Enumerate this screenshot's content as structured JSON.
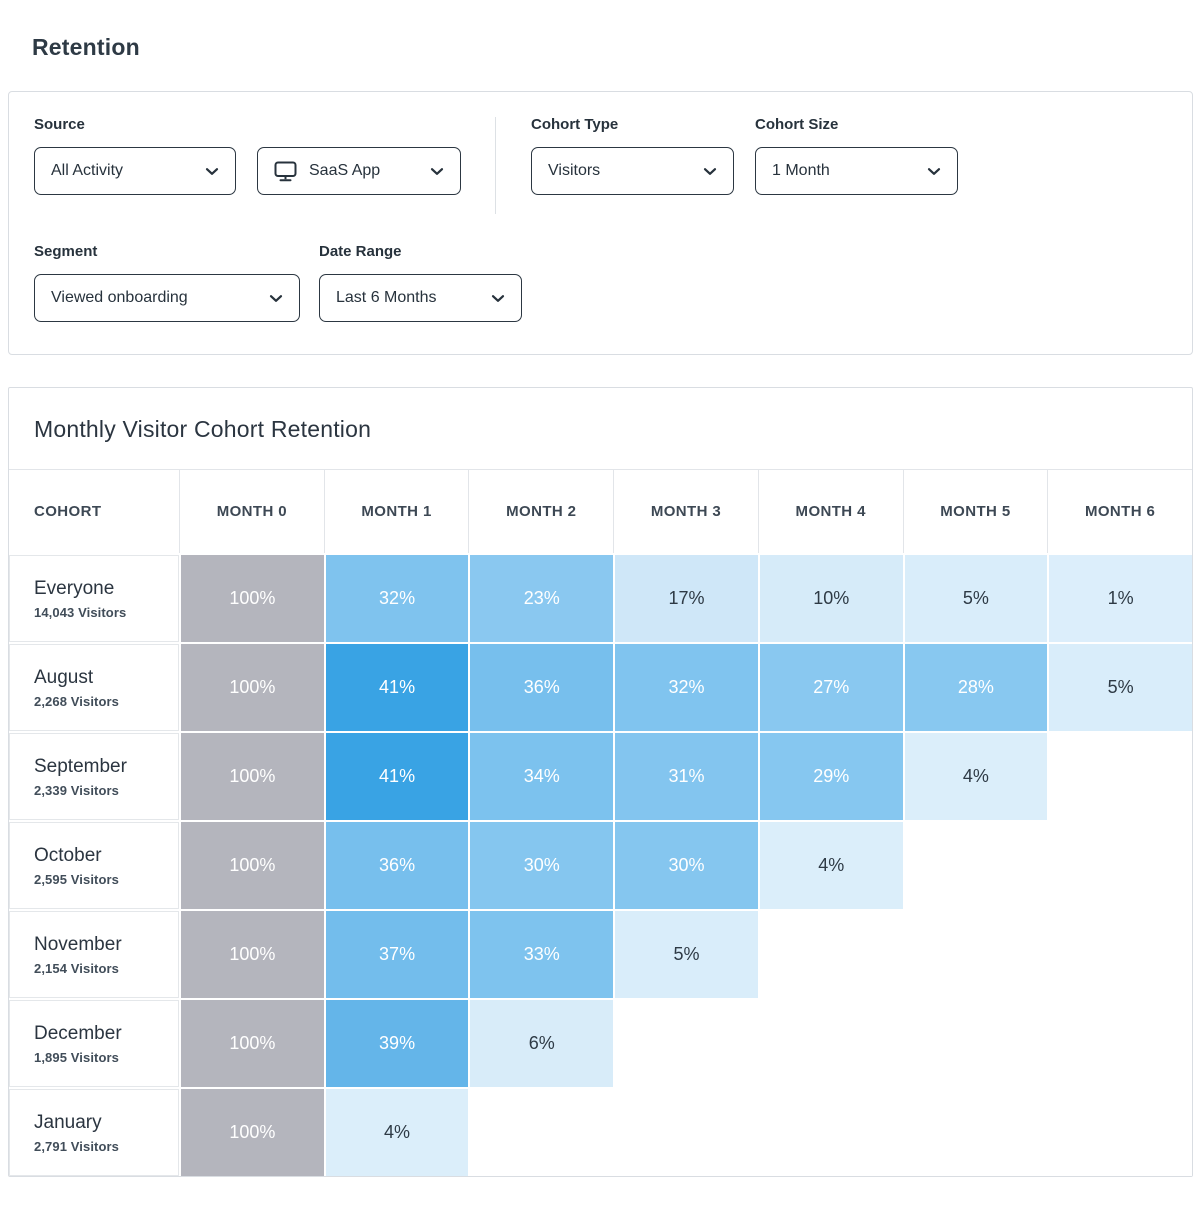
{
  "page_title": "Retention",
  "filters": {
    "source": {
      "label": "Source",
      "activity": {
        "value": "All Activity"
      },
      "app": {
        "value": "SaaS App",
        "icon": "monitor-icon"
      }
    },
    "cohort_type": {
      "label": "Cohort Type",
      "value": "Visitors"
    },
    "cohort_size": {
      "label": "Cohort Size",
      "value": "1 Month"
    },
    "segment": {
      "label": "Segment",
      "value": "Viewed onboarding"
    },
    "date_range": {
      "label": "Date Range",
      "value": "Last 6 Months"
    }
  },
  "colors": {
    "accent_strong_blue": "#39a3e4",
    "month0_gray": "#b4b5bd",
    "panel_border": "#d9dde2",
    "cell_text_light": "#ffffff",
    "cell_text_dark": "#2e3a45"
  },
  "table": {
    "title": "Monthly Visitor Cohort Retention",
    "columns": [
      "COHORT",
      "MONTH 0",
      "MONTH 1",
      "MONTH 2",
      "MONTH 3",
      "MONTH 4",
      "MONTH 5",
      "MONTH 6"
    ],
    "rows": [
      {
        "cohort": "Everyone",
        "visitors": "14,043 Visitors",
        "cells": [
          {
            "v": "100%",
            "bg": "#b4b5bd",
            "fg": "#ffffff"
          },
          {
            "v": "32%",
            "bg": "#7fc3ee",
            "fg": "#ffffff"
          },
          {
            "v": "23%",
            "bg": "#8ac8f0",
            "fg": "#ffffff"
          },
          {
            "v": "17%",
            "bg": "#cfe7f8",
            "fg": "#2e3a45"
          },
          {
            "v": "10%",
            "bg": "#d6ebf9",
            "fg": "#2e3a45"
          },
          {
            "v": "5%",
            "bg": "#d9edfa",
            "fg": "#2e3a45"
          },
          {
            "v": "1%",
            "bg": "#dceefb",
            "fg": "#2e3a45"
          }
        ]
      },
      {
        "cohort": "August",
        "visitors": "2,268 Visitors",
        "cells": [
          {
            "v": "100%",
            "bg": "#b4b5bd",
            "fg": "#ffffff"
          },
          {
            "v": "41%",
            "bg": "#39a3e4",
            "fg": "#ffffff"
          },
          {
            "v": "36%",
            "bg": "#77bfed",
            "fg": "#ffffff"
          },
          {
            "v": "32%",
            "bg": "#80c4ef",
            "fg": "#ffffff"
          },
          {
            "v": "27%",
            "bg": "#89c8f0",
            "fg": "#ffffff"
          },
          {
            "v": "28%",
            "bg": "#88c8f0",
            "fg": "#ffffff"
          },
          {
            "v": "5%",
            "bg": "#d9edfa",
            "fg": "#2e3a45"
          }
        ]
      },
      {
        "cohort": "September",
        "visitors": "2,339 Visitors",
        "cells": [
          {
            "v": "100%",
            "bg": "#b4b5bd",
            "fg": "#ffffff"
          },
          {
            "v": "41%",
            "bg": "#39a3e4",
            "fg": "#ffffff"
          },
          {
            "v": "34%",
            "bg": "#7cc2ee",
            "fg": "#ffffff"
          },
          {
            "v": "31%",
            "bg": "#83c5ef",
            "fg": "#ffffff"
          },
          {
            "v": "29%",
            "bg": "#86c7f0",
            "fg": "#ffffff"
          },
          {
            "v": "4%",
            "bg": "#dbeefa",
            "fg": "#2e3a45"
          }
        ]
      },
      {
        "cohort": "October",
        "visitors": "2,595 Visitors",
        "cells": [
          {
            "v": "100%",
            "bg": "#b4b5bd",
            "fg": "#ffffff"
          },
          {
            "v": "36%",
            "bg": "#77bfed",
            "fg": "#ffffff"
          },
          {
            "v": "30%",
            "bg": "#85c6ef",
            "fg": "#ffffff"
          },
          {
            "v": "30%",
            "bg": "#85c6ef",
            "fg": "#ffffff"
          },
          {
            "v": "4%",
            "bg": "#dbeefa",
            "fg": "#2e3a45"
          }
        ]
      },
      {
        "cohort": "November",
        "visitors": "2,154 Visitors",
        "cells": [
          {
            "v": "100%",
            "bg": "#b4b5bd",
            "fg": "#ffffff"
          },
          {
            "v": "37%",
            "bg": "#73bdec",
            "fg": "#ffffff"
          },
          {
            "v": "33%",
            "bg": "#7ec3ee",
            "fg": "#ffffff"
          },
          {
            "v": "5%",
            "bg": "#d9edfa",
            "fg": "#2e3a45"
          }
        ]
      },
      {
        "cohort": "December",
        "visitors": "1,895 Visitors",
        "cells": [
          {
            "v": "100%",
            "bg": "#b4b5bd",
            "fg": "#ffffff"
          },
          {
            "v": "39%",
            "bg": "#64b5e9",
            "fg": "#ffffff"
          },
          {
            "v": "6%",
            "bg": "#d8ecf9",
            "fg": "#2e3a45"
          }
        ]
      },
      {
        "cohort": "January",
        "visitors": "2,791 Visitors",
        "cells": [
          {
            "v": "100%",
            "bg": "#b4b5bd",
            "fg": "#ffffff"
          },
          {
            "v": "4%",
            "bg": "#dbeefa",
            "fg": "#2e3a45"
          }
        ]
      }
    ]
  }
}
